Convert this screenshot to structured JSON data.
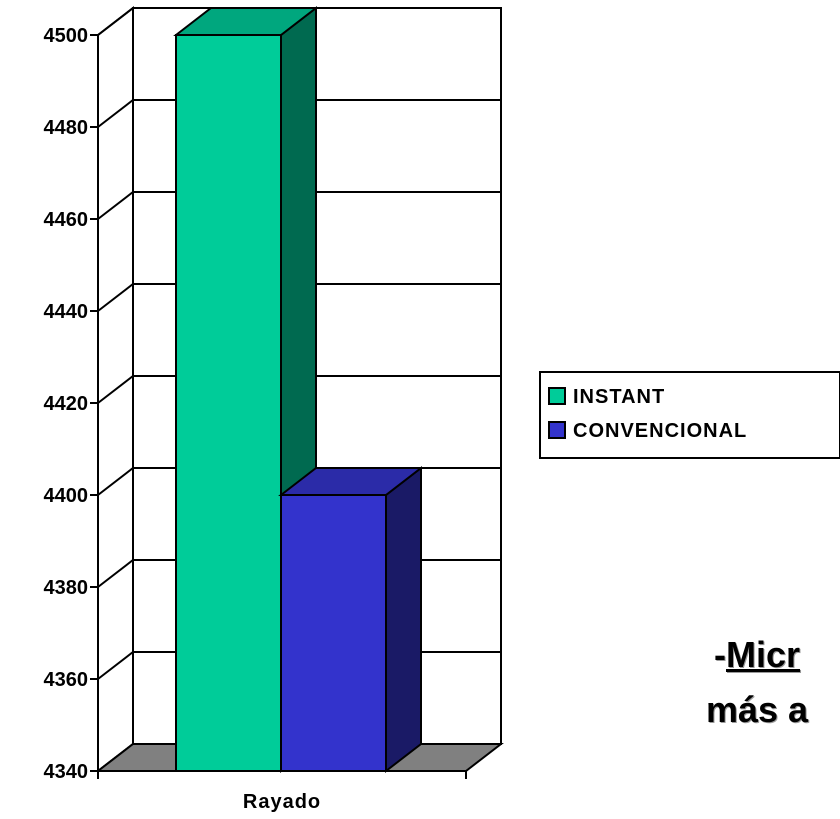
{
  "chart_data": {
    "type": "bar",
    "style": "3d-clustered-column",
    "categories": [
      "Rayado"
    ],
    "series": [
      {
        "name": "INSTANT",
        "values": [
          4500
        ],
        "color": "#00cc99",
        "side_color": "#006a50",
        "top_color": "#00a77e"
      },
      {
        "name": "CONVENCIONAL",
        "values": [
          4400
        ],
        "color": "#3333cc",
        "side_color": "#1a1a66",
        "top_color": "#2b2ba8"
      }
    ],
    "ylim": [
      4340,
      4500
    ],
    "yticks": [
      4500,
      4480,
      4460,
      4440,
      4420,
      4400,
      4380,
      4360,
      4340
    ],
    "grid": true,
    "legend_position": "right",
    "floor_color": "#808080"
  },
  "caption": {
    "line1_prefix": "-",
    "line1_underlined": "Micr",
    "line2": "más a"
  }
}
